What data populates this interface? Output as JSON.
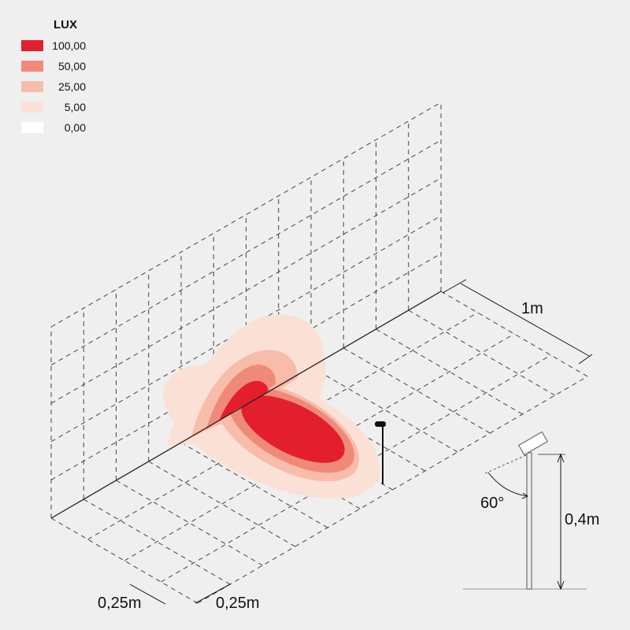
{
  "legend": {
    "title": "LUX",
    "items": [
      {
        "label": "100,00",
        "color": "#e31e2d"
      },
      {
        "label": "50,00",
        "color": "#f08a78"
      },
      {
        "label": "25,00",
        "color": "#f7bcaa"
      },
      {
        "label": "5,00",
        "color": "#fbe0d6"
      },
      {
        "label": "0,00",
        "color": "#ffffff"
      }
    ]
  },
  "dimensions": {
    "depth": "1m",
    "cell_width": "0,25m",
    "cell_depth": "0,25m",
    "angle": "60°",
    "height": "0,4m"
  }
}
